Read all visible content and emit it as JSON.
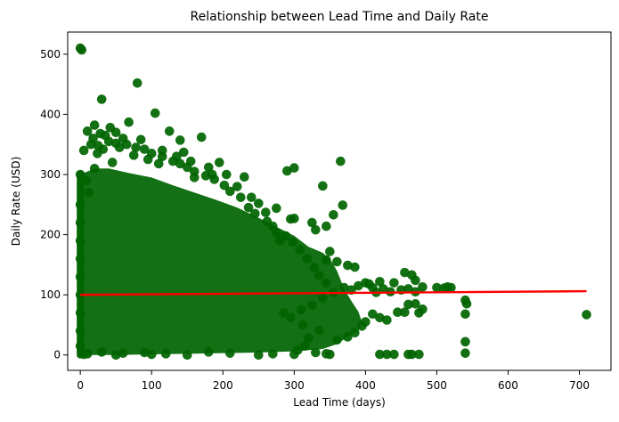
{
  "chart_data": {
    "type": "scatter",
    "title": "Relationship between Lead Time and Daily Rate",
    "xlabel": "Lead Time (days)",
    "ylabel": "Daily Rate (USD)",
    "xlim": [
      -17.7,
      744.3
    ],
    "ylim": [
      -25.6,
      536.8
    ],
    "xticks": [
      0,
      100,
      200,
      300,
      400,
      500,
      600,
      700
    ],
    "yticks": [
      0,
      100,
      200,
      300,
      400,
      500
    ],
    "grid": false,
    "legend": "none",
    "colors": {
      "points": "#006400",
      "trend_line": "#ff0000"
    },
    "series": [
      {
        "kind": "scatter",
        "points": [
          [
            0,
            510
          ],
          [
            2,
            507
          ],
          [
            30,
            425
          ],
          [
            80,
            452
          ],
          [
            105,
            402
          ],
          [
            68,
            387
          ],
          [
            20,
            382
          ],
          [
            35,
            365
          ],
          [
            10,
            372
          ],
          [
            60,
            360
          ],
          [
            140,
            357
          ],
          [
            170,
            362
          ],
          [
            125,
            372
          ],
          [
            55,
            345
          ],
          [
            145,
            337
          ],
          [
            185,
            300
          ],
          [
            195,
            320
          ],
          [
            300,
            311
          ],
          [
            290,
            306
          ],
          [
            365,
            322
          ],
          [
            340,
            281
          ],
          [
            355,
            233
          ],
          [
            345,
            214
          ],
          [
            368,
            249
          ],
          [
            250,
            252
          ],
          [
            260,
            237
          ],
          [
            300,
            227
          ],
          [
            325,
            220
          ],
          [
            330,
            208
          ],
          [
            275,
            203
          ],
          [
            280,
            190
          ],
          [
            350,
            172
          ],
          [
            345,
            158
          ],
          [
            360,
            155
          ],
          [
            375,
            149
          ],
          [
            385,
            146
          ],
          [
            400,
            120
          ],
          [
            420,
            122
          ],
          [
            440,
            120
          ],
          [
            455,
            137
          ],
          [
            465,
            133
          ],
          [
            470,
            124
          ],
          [
            480,
            113
          ],
          [
            500,
            112
          ],
          [
            510,
            111
          ],
          [
            515,
            113
          ],
          [
            520,
            112
          ],
          [
            540,
            91
          ],
          [
            542,
            85
          ],
          [
            540,
            68
          ],
          [
            540,
            22
          ],
          [
            540,
            3
          ],
          [
            710,
            67
          ],
          [
            460,
            84
          ],
          [
            470,
            85
          ],
          [
            475,
            70
          ],
          [
            480,
            76
          ],
          [
            455,
            71
          ],
          [
            445,
            71
          ],
          [
            410,
            68
          ],
          [
            420,
            62
          ],
          [
            430,
            58
          ],
          [
            400,
            55
          ],
          [
            395,
            48
          ],
          [
            385,
            37
          ],
          [
            375,
            30
          ],
          [
            360,
            25
          ],
          [
            345,
            2
          ],
          [
            420,
            1
          ],
          [
            430,
            1
          ],
          [
            440,
            1
          ],
          [
            460,
            1
          ],
          [
            465,
            1
          ],
          [
            475,
            1
          ],
          [
            300,
            1
          ],
          [
            250,
            0
          ],
          [
            150,
            0
          ],
          [
            100,
            1
          ],
          [
            50,
            0
          ],
          [
            10,
            2
          ],
          [
            5,
            1
          ],
          [
            30,
            5
          ],
          [
            60,
            3
          ],
          [
            90,
            4
          ],
          [
            120,
            2
          ],
          [
            180,
            5
          ],
          [
            210,
            3
          ],
          [
            270,
            2
          ],
          [
            330,
            4
          ],
          [
            350,
            1
          ],
          [
            305,
            8
          ],
          [
            315,
            15
          ],
          [
            320,
            28
          ],
          [
            335,
            41
          ],
          [
            312,
            50
          ],
          [
            295,
            62
          ],
          [
            285,
            70
          ],
          [
            310,
            75
          ],
          [
            325,
            83
          ],
          [
            340,
            95
          ],
          [
            355,
            104
          ],
          [
            370,
            112
          ],
          [
            380,
            108
          ],
          [
            390,
            115
          ],
          [
            405,
            118
          ],
          [
            410,
            112
          ],
          [
            415,
            104
          ],
          [
            425,
            110
          ],
          [
            435,
            105
          ],
          [
            450,
            108
          ],
          [
            460,
            110
          ],
          [
            470,
            105
          ],
          [
            345,
            120
          ],
          [
            335,
            132
          ],
          [
            328,
            145
          ],
          [
            318,
            160
          ],
          [
            308,
            175
          ],
          [
            298,
            188
          ],
          [
            288,
            198
          ],
          [
            270,
            214
          ],
          [
            262,
            222
          ],
          [
            245,
            235
          ],
          [
            236,
            245
          ],
          [
            225,
            262
          ],
          [
            210,
            272
          ],
          [
            202,
            282
          ],
          [
            188,
            292
          ],
          [
            176,
            298
          ],
          [
            160,
            305
          ],
          [
            150,
            312
          ],
          [
            140,
            318
          ],
          [
            130,
            322
          ],
          [
            115,
            330
          ],
          [
            100,
            335
          ],
          [
            90,
            342
          ],
          [
            78,
            345
          ],
          [
            65,
            350
          ],
          [
            50,
            352
          ],
          [
            40,
            355
          ],
          [
            25,
            348
          ],
          [
            15,
            350
          ],
          [
            5,
            340
          ],
          [
            0,
            300
          ],
          [
            8,
            290
          ],
          [
            12,
            270
          ],
          [
            0,
            250
          ],
          [
            0,
            220
          ],
          [
            0,
            190
          ],
          [
            0,
            160
          ],
          [
            0,
            130
          ],
          [
            0,
            100
          ],
          [
            0,
            70
          ],
          [
            0,
            40
          ],
          [
            0,
            15
          ],
          [
            20,
            310
          ],
          [
            45,
            320
          ],
          [
            75,
            332
          ],
          [
            95,
            325
          ],
          [
            110,
            318
          ],
          [
            160,
            295
          ],
          [
            220,
            280
          ],
          [
            240,
            262
          ],
          [
            275,
            244
          ],
          [
            295,
            226
          ],
          [
            230,
            296
          ],
          [
            205,
            300
          ],
          [
            180,
            312
          ],
          [
            155,
            322
          ],
          [
            135,
            330
          ],
          [
            115,
            340
          ],
          [
            85,
            358
          ],
          [
            50,
            370
          ],
          [
            42,
            378
          ],
          [
            28,
            368
          ],
          [
            18,
            360
          ],
          [
            24,
            335
          ],
          [
            32,
            342
          ]
        ]
      },
      {
        "kind": "line",
        "points": [
          [
            0,
            100
          ],
          [
            710,
            106
          ]
        ]
      }
    ]
  }
}
